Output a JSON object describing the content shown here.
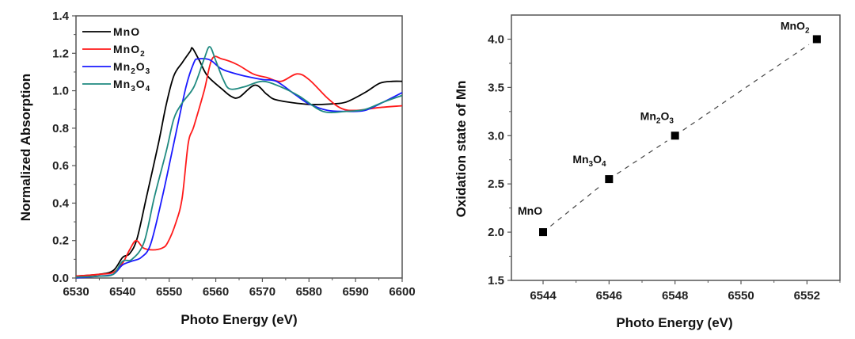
{
  "chart_data": [
    {
      "type": "line",
      "title": "",
      "xlabel": "Photo Energy (eV)",
      "ylabel": "Normalized Absorption",
      "xlim": [
        6530,
        6600
      ],
      "ylim": [
        0.0,
        1.4
      ],
      "xticks": [
        6530,
        6540,
        6550,
        6560,
        6570,
        6580,
        6590,
        6600
      ],
      "xtick_labels": [
        "6530",
        "6540",
        "6550",
        "6560",
        "6570",
        "6580",
        "6590",
        "6600"
      ],
      "yticks": [
        0.0,
        0.2,
        0.4,
        0.6,
        0.8,
        1.0,
        1.2,
        1.4
      ],
      "ytick_labels": [
        "0.0",
        "0.2",
        "0.4",
        "0.6",
        "0.8",
        "1.0",
        "1.2",
        "1.4"
      ],
      "grid": false,
      "legend_position": "top-left",
      "series": [
        {
          "name": "MnO",
          "label_base": "MnO",
          "label_sub": "",
          "color": "#000000",
          "x": [
            6530,
            6535,
            6538,
            6540,
            6541.5,
            6543.1,
            6545.1,
            6547.7,
            6549.4,
            6551,
            6552.8,
            6554.5,
            6555,
            6556.5,
            6558.2,
            6561.3,
            6563.3,
            6565,
            6568.4,
            6571,
            6573.2,
            6580,
            6585,
            6588,
            6592,
            6595.2,
            6598,
            6600
          ],
          "y": [
            0.01,
            0.02,
            0.04,
            0.11,
            0.13,
            0.21,
            0.43,
            0.72,
            0.93,
            1.08,
            1.15,
            1.21,
            1.227,
            1.16,
            1.08,
            1.01,
            0.97,
            0.965,
            1.03,
            0.98,
            0.95,
            0.927,
            0.93,
            0.94,
            0.99,
            1.04,
            1.05,
            1.05
          ]
        },
        {
          "name": "MnO2",
          "label_base": "MnO",
          "label_sub": "2",
          "color": "#ff1a1a",
          "x": [
            6530,
            6535,
            6538,
            6540,
            6541.5,
            6542.9,
            6544.5,
            6546.5,
            6548.5,
            6549.7,
            6551.5,
            6552.8,
            6554.1,
            6555.3,
            6557.5,
            6559.2,
            6561.3,
            6564.6,
            6568,
            6571,
            6574,
            6577.4,
            6580,
            6584,
            6587,
            6590,
            6595,
            6600
          ],
          "y": [
            0.01,
            0.02,
            0.03,
            0.08,
            0.15,
            0.2,
            0.16,
            0.15,
            0.16,
            0.19,
            0.3,
            0.43,
            0.72,
            0.81,
            1.0,
            1.17,
            1.17,
            1.14,
            1.09,
            1.07,
            1.05,
            1.09,
            1.06,
            0.96,
            0.905,
            0.895,
            0.91,
            0.92
          ]
        },
        {
          "name": "Mn2O3",
          "label_base": "Mn",
          "label_sub": "2",
          "label_tail": "O",
          "label_sub2": "3",
          "color": "#1a1aff",
          "x": [
            6530,
            6535,
            6538,
            6540,
            6542,
            6544,
            6546,
            6548.5,
            6551,
            6553.6,
            6555.3,
            6556.2,
            6558.7,
            6561,
            6563,
            6566,
            6570,
            6573,
            6577,
            6580,
            6584,
            6588,
            6592,
            6596,
            6600
          ],
          "y": [
            0.0,
            0.01,
            0.02,
            0.07,
            0.09,
            0.11,
            0.18,
            0.43,
            0.72,
            1.02,
            1.15,
            1.17,
            1.165,
            1.12,
            1.1,
            1.08,
            1.06,
            1.05,
            0.98,
            0.93,
            0.895,
            0.89,
            0.895,
            0.94,
            0.99
          ]
        },
        {
          "name": "Mn3O4",
          "label_base": "Mn",
          "label_sub": "3",
          "label_tail": "O",
          "label_sub2": "4",
          "color": "#1f8a80",
          "x": [
            6530,
            6535,
            6538,
            6540,
            6542,
            6544.6,
            6546.8,
            6549.4,
            6551,
            6552.8,
            6555.3,
            6557.5,
            6558.7,
            6560,
            6561.6,
            6563,
            6566,
            6570,
            6574,
            6578,
            6583,
            6588,
            6592,
            6596,
            6600
          ],
          "y": [
            0.005,
            0.01,
            0.02,
            0.09,
            0.1,
            0.19,
            0.43,
            0.68,
            0.85,
            0.935,
            1.02,
            1.17,
            1.235,
            1.16,
            1.06,
            1.01,
            1.02,
            1.05,
            1.02,
            0.97,
            0.89,
            0.89,
            0.9,
            0.94,
            0.975
          ]
        }
      ]
    },
    {
      "type": "scatter",
      "title": "",
      "xlabel": "Photo Energy (eV)",
      "ylabel": "Oxidation state of Mn",
      "xlim": [
        6543.04,
        6553.0
      ],
      "ylim": [
        1.5,
        4.25
      ],
      "xticks": [
        6544,
        6546,
        6548,
        6550,
        6552
      ],
      "xtick_labels": [
        "6544",
        "6546",
        "6548",
        "6550",
        "6552"
      ],
      "xminor": [
        6545,
        6547,
        6549,
        6551,
        6553
      ],
      "yticks": [
        1.5,
        2.0,
        2.5,
        3.0,
        3.5,
        4.0
      ],
      "ytick_labels": [
        "1.5",
        "2.0",
        "2.5",
        "3.0",
        "3.5",
        "4.0"
      ],
      "yminor": [
        1.75,
        2.25,
        2.75,
        3.25,
        3.75
      ],
      "grid": false,
      "fit_line": {
        "style": "dashed",
        "color": "#444444"
      },
      "points": [
        {
          "label_base": "MnO",
          "label_sub": "",
          "label_tail": "",
          "label_sub2": "",
          "x": 6544.0,
          "y": 2.0
        },
        {
          "label_base": "Mn",
          "label_sub": "3",
          "label_tail": "O",
          "label_sub2": "4",
          "x": 6546.0,
          "y": 2.55
        },
        {
          "label_base": "Mn",
          "label_sub": "2",
          "label_tail": "O",
          "label_sub2": "3",
          "x": 6548.0,
          "y": 3.0
        },
        {
          "label_base": "MnO",
          "label_sub": "2",
          "label_tail": "",
          "label_sub2": "",
          "x": 6552.3,
          "y": 4.0
        }
      ]
    }
  ]
}
